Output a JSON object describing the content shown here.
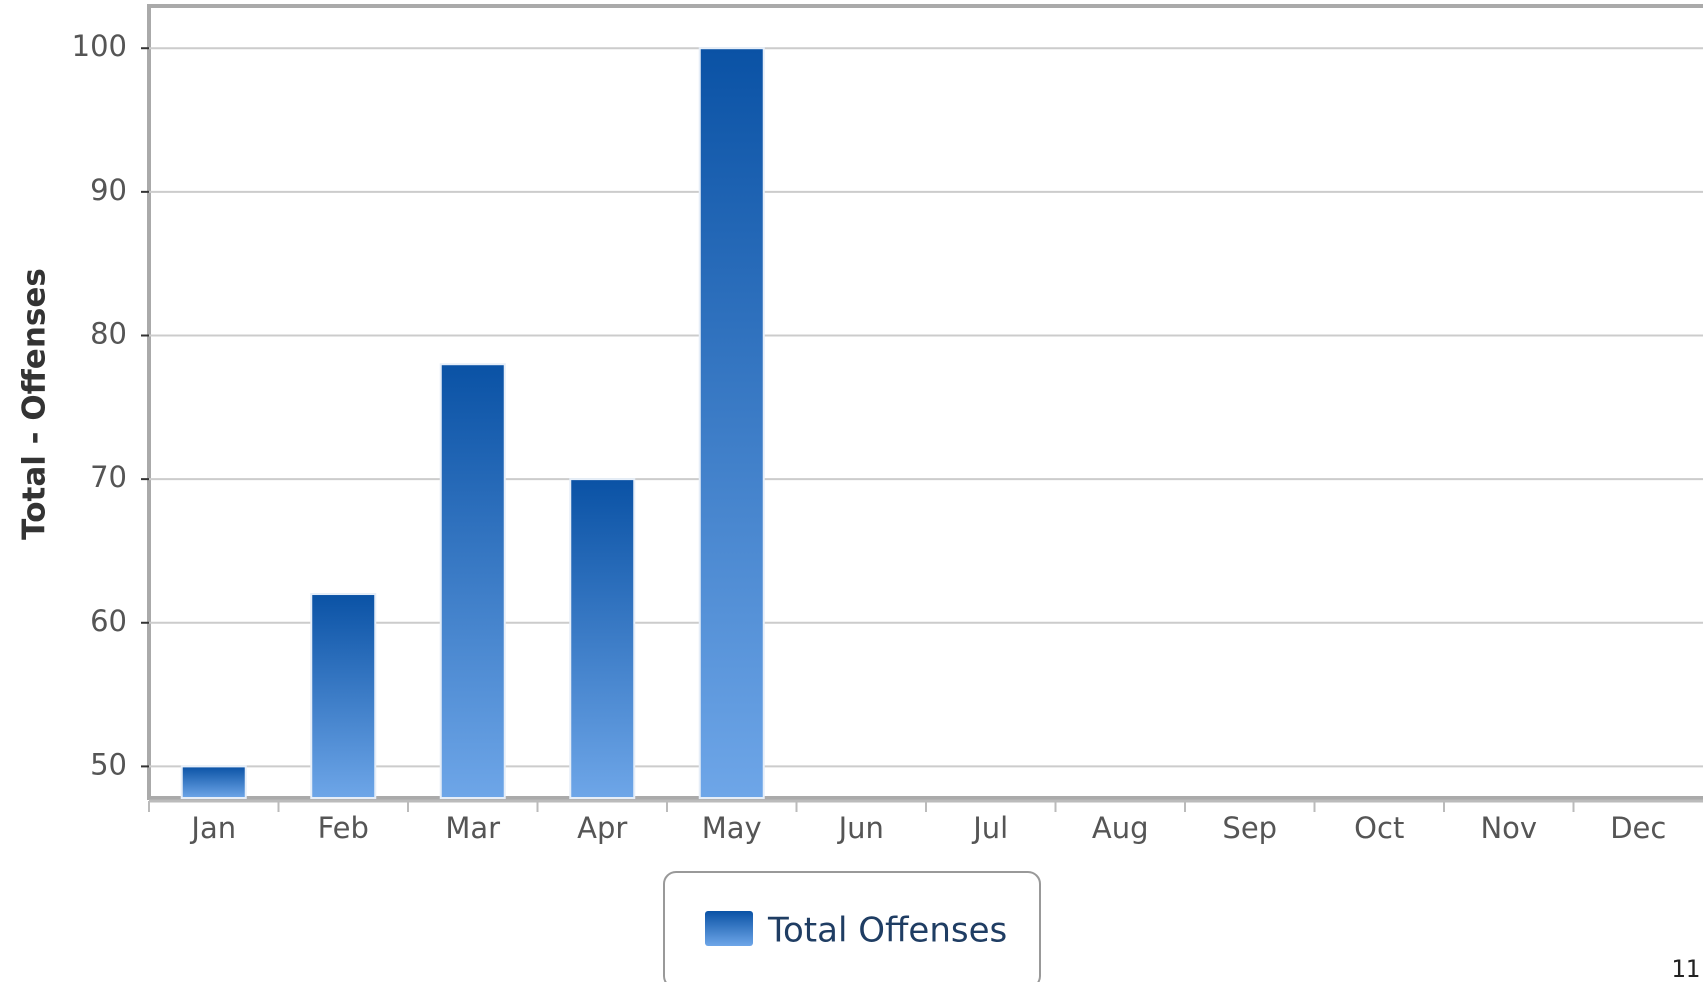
{
  "chart_data": {
    "type": "bar",
    "y_label": "Total - Offenses",
    "categories": [
      "Jan",
      "Feb",
      "Mar",
      "Apr",
      "May",
      "Jun",
      "Jul",
      "Aug",
      "Sep",
      "Oct",
      "Nov",
      "Dec"
    ],
    "series": [
      {
        "name": "Total Offenses",
        "color": "#0a52a5",
        "values": [
          50,
          62,
          78,
          70,
          100,
          null,
          null,
          null,
          null,
          null,
          null,
          null
        ]
      }
    ],
    "ylim": [
      47.8,
      102.8
    ],
    "yticks": [
      50,
      60,
      70,
      80,
      90,
      100
    ],
    "grid": true,
    "legend": "bottom"
  },
  "footer": "11"
}
